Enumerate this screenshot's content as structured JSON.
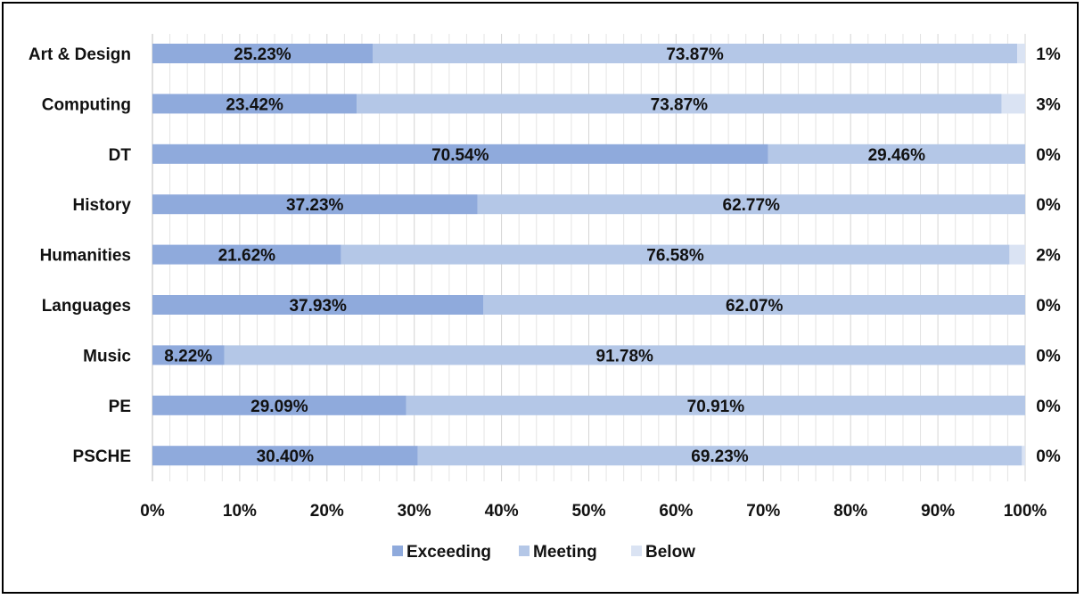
{
  "chart_data": {
    "type": "bar",
    "orientation": "horizontal",
    "stacked": true,
    "title": "",
    "xlabel": "",
    "ylabel": "",
    "xlim": [
      0,
      100
    ],
    "x_ticks": [
      "0%",
      "10%",
      "20%",
      "30%",
      "40%",
      "50%",
      "60%",
      "70%",
      "80%",
      "90%",
      "100%"
    ],
    "grid": "vertical minor gridlines",
    "legend_position": "bottom",
    "categories": [
      "Art & Design",
      "Computing",
      "DT",
      "History",
      "Humanities",
      "Languages",
      "Music",
      "PE",
      "PSCHE"
    ],
    "series": [
      {
        "name": "Exceeding",
        "color": "#8faadc",
        "values": [
          25.23,
          23.42,
          70.54,
          37.23,
          21.62,
          37.93,
          8.22,
          29.09,
          30.4
        ],
        "labels": [
          "25.23%",
          "23.42%",
          "70.54%",
          "37.23%",
          "21.62%",
          "37.93%",
          "8.22%",
          "29.09%",
          "30.40%"
        ]
      },
      {
        "name": "Meeting",
        "color": "#b4c7e7",
        "values": [
          73.87,
          73.87,
          29.46,
          62.77,
          76.58,
          62.07,
          91.78,
          70.91,
          69.23
        ],
        "labels": [
          "73.87%",
          "73.87%",
          "29.46%",
          "62.77%",
          "76.58%",
          "62.07%",
          "91.78%",
          "70.91%",
          "69.23%"
        ]
      },
      {
        "name": "Below",
        "color": "#dae3f3",
        "values": [
          0.9,
          2.71,
          0,
          0,
          1.8,
          0,
          0,
          0,
          0.37
        ],
        "labels": [
          "1%",
          "3%",
          "0%",
          "0%",
          "2%",
          "0%",
          "0%",
          "0%",
          "0%"
        ]
      }
    ]
  }
}
